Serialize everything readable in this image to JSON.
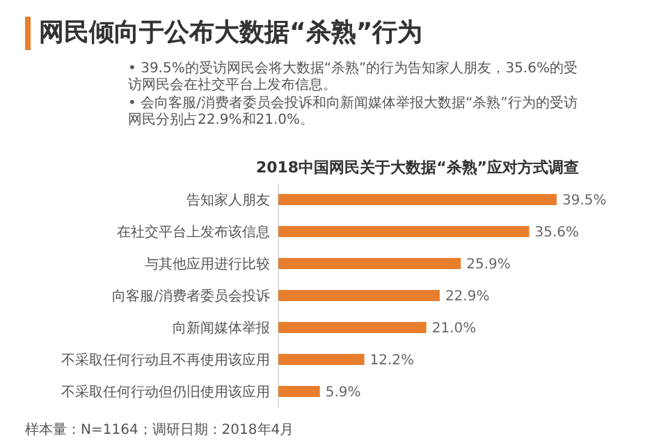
{
  "chart_data": {
    "type": "bar",
    "orientation": "horizontal",
    "title": "网民倾向于公布大数据“杀熟”行为",
    "subtitle": "2018中国网民关于大数据“杀熟”应对方式调查",
    "annotations": [
      "• 39.5%的受访网民会将大数据“杀熟”的行为告知家人朋友，35.6%的受访网民会在社交平台上发布信息。",
      "• 会向客服/消费者委员会投诉和向新闻媒体举报大数据“杀熟”行为的受访网民分别占22.9%和21.0%。",
      "样本量：N=1164；调研日期：2018年4月"
    ],
    "categories": [
      "告知家人朋友",
      "在社交平台上发布该信息",
      "与其他应用进行比较",
      "向客服/消费者委员会投诉",
      "向新闻媒体举报",
      "不采取任何行动且不再使用该应用",
      "不采取任何行动但仍旧使用该应用"
    ],
    "values": [
      39.5,
      35.6,
      25.9,
      22.9,
      21.0,
      12.2,
      5.9
    ],
    "value_labels": [
      "39.5%",
      "35.6%",
      "25.9%",
      "22.9%",
      "21.0%",
      "12.2%",
      "5.9%"
    ],
    "color": "#e67e2e"
  }
}
